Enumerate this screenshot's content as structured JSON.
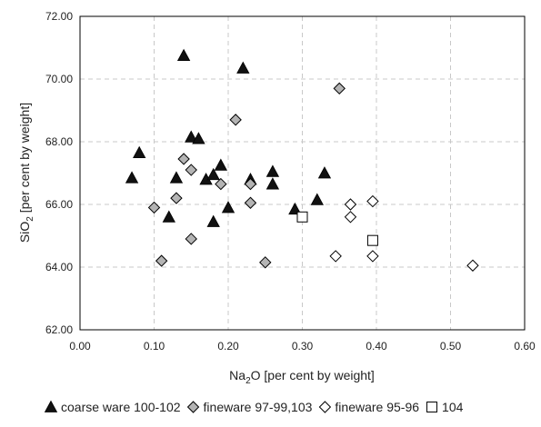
{
  "chart_data": {
    "type": "scatter",
    "title": "",
    "xlabel_main": "Na",
    "xlabel_sub": "2",
    "xlabel_rest": "O [per cent by weight]",
    "ylabel_main": "SiO",
    "ylabel_sub": "2",
    "ylabel_rest": " [per cent by weight]",
    "xlim": [
      0,
      0.6
    ],
    "ylim": [
      62,
      72
    ],
    "x_ticks": [
      "0.00",
      "0.10",
      "0.20",
      "0.30",
      "0.40",
      "0.50",
      "0.60"
    ],
    "y_ticks": [
      "62.00",
      "64.00",
      "66.00",
      "68.00",
      "70.00",
      "72.00"
    ],
    "grid": true,
    "legend_position": "bottom",
    "series": [
      {
        "name": "coarse ware 100-102",
        "marker": "triangle",
        "fill": "#111111",
        "points": [
          [
            0.07,
            66.85
          ],
          [
            0.08,
            67.65
          ],
          [
            0.12,
            65.6
          ],
          [
            0.13,
            66.85
          ],
          [
            0.14,
            70.75
          ],
          [
            0.15,
            68.15
          ],
          [
            0.16,
            68.1
          ],
          [
            0.17,
            66.8
          ],
          [
            0.18,
            66.95
          ],
          [
            0.18,
            65.45
          ],
          [
            0.19,
            67.25
          ],
          [
            0.2,
            65.9
          ],
          [
            0.22,
            70.35
          ],
          [
            0.23,
            66.8
          ],
          [
            0.26,
            67.05
          ],
          [
            0.26,
            66.65
          ],
          [
            0.29,
            65.85
          ],
          [
            0.32,
            66.15
          ],
          [
            0.33,
            67.0
          ]
        ]
      },
      {
        "name": "fineware 97-99,103",
        "marker": "diamond",
        "fill": "#b4b4b4",
        "points": [
          [
            0.1,
            65.9
          ],
          [
            0.11,
            64.2
          ],
          [
            0.13,
            66.2
          ],
          [
            0.14,
            67.45
          ],
          [
            0.15,
            67.1
          ],
          [
            0.15,
            64.9
          ],
          [
            0.19,
            66.65
          ],
          [
            0.21,
            68.7
          ],
          [
            0.23,
            66.65
          ],
          [
            0.23,
            66.05
          ],
          [
            0.25,
            64.15
          ],
          [
            0.35,
            69.7
          ]
        ]
      },
      {
        "name": "fineware 95-96",
        "marker": "diamond",
        "fill": "#ffffff",
        "points": [
          [
            0.345,
            64.35
          ],
          [
            0.365,
            66.0
          ],
          [
            0.365,
            65.6
          ],
          [
            0.395,
            66.1
          ],
          [
            0.395,
            64.35
          ],
          [
            0.53,
            64.05
          ]
        ]
      },
      {
        "name": "104",
        "marker": "square",
        "fill": "#ffffff",
        "points": [
          [
            0.3,
            65.6
          ],
          [
            0.395,
            64.85
          ]
        ]
      }
    ]
  }
}
